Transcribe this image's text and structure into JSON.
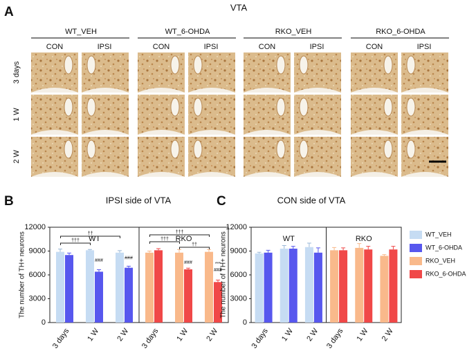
{
  "panel_a": {
    "label": "A",
    "title": "VTA",
    "columns": [
      "WT_VEH",
      "WT_6-OHDA",
      "RKO_VEH",
      "RKO_6-OHDA"
    ],
    "sides": [
      "CON",
      "IPSI"
    ],
    "rows": [
      "3 days",
      "1 W",
      "2 W"
    ]
  },
  "chart_data": [
    {
      "type": "bar",
      "panel": "B",
      "title": "IPSI side of VTA",
      "ylabel": "The number of TH+ neurons",
      "categories": [
        "3 days",
        "1 W",
        "2 W",
        "3 days",
        "1 W",
        "2 W"
      ],
      "group_labels": [
        "WT",
        "RKO"
      ],
      "series": [
        {
          "name": "WT_VEH",
          "color": "#c6dcf3",
          "values": [
            8900,
            9100,
            8800,
            null,
            null,
            null
          ],
          "errors": [
            350,
            100,
            250,
            null,
            null,
            null
          ]
        },
        {
          "name": "WT_6-OHDA",
          "color": "#5757ee",
          "values": [
            8500,
            6400,
            6900,
            null,
            null,
            null
          ],
          "errors": [
            250,
            250,
            200,
            null,
            null,
            null
          ]
        },
        {
          "name": "RKO_VEH",
          "color": "#f9b98b",
          "values": [
            null,
            null,
            null,
            8800,
            8800,
            8900
          ],
          "errors": [
            null,
            null,
            null,
            200,
            400,
            300
          ]
        },
        {
          "name": "RKO_6-OHDA",
          "color": "#f04848",
          "values": [
            null,
            null,
            null,
            9100,
            6700,
            5100
          ],
          "errors": [
            null,
            null,
            null,
            200,
            150,
            250
          ]
        }
      ],
      "annotations": [
        "††",
        "†††",
        "###",
        "###",
        "†††",
        "†††",
        "††",
        "###",
        "***",
        "###"
      ],
      "ylim": [
        0,
        12000
      ],
      "yticks": [
        0,
        3000,
        6000,
        9000,
        12000
      ]
    },
    {
      "type": "bar",
      "panel": "C",
      "title": "CON side of VTA",
      "ylabel": "The number of TH+ neurons",
      "categories": [
        "3 days",
        "1 W",
        "2 W",
        "3 days",
        "1 W",
        "2 W"
      ],
      "group_labels": [
        "WT",
        "RKO"
      ],
      "series": [
        {
          "name": "WT_VEH",
          "color": "#c6dcf3",
          "values": [
            8700,
            9300,
            9500,
            null,
            null,
            null
          ],
          "errors": [
            150,
            400,
            500,
            null,
            null,
            null
          ]
        },
        {
          "name": "WT_6-OHDA",
          "color": "#5757ee",
          "values": [
            8800,
            9300,
            8800,
            null,
            null,
            null
          ],
          "errors": [
            300,
            300,
            600,
            null,
            null,
            null
          ]
        },
        {
          "name": "RKO_VEH",
          "color": "#f9b98b",
          "values": [
            null,
            null,
            null,
            9100,
            9400,
            8400
          ],
          "errors": [
            null,
            null,
            null,
            350,
            550,
            150
          ]
        },
        {
          "name": "RKO_6-OHDA",
          "color": "#f04848",
          "values": [
            null,
            null,
            null,
            9100,
            9200,
            9200
          ],
          "errors": [
            null,
            null,
            null,
            300,
            400,
            400
          ]
        }
      ],
      "ylim": [
        0,
        12000
      ],
      "yticks": [
        0,
        3000,
        6000,
        9000,
        12000
      ],
      "legend": "right"
    }
  ]
}
